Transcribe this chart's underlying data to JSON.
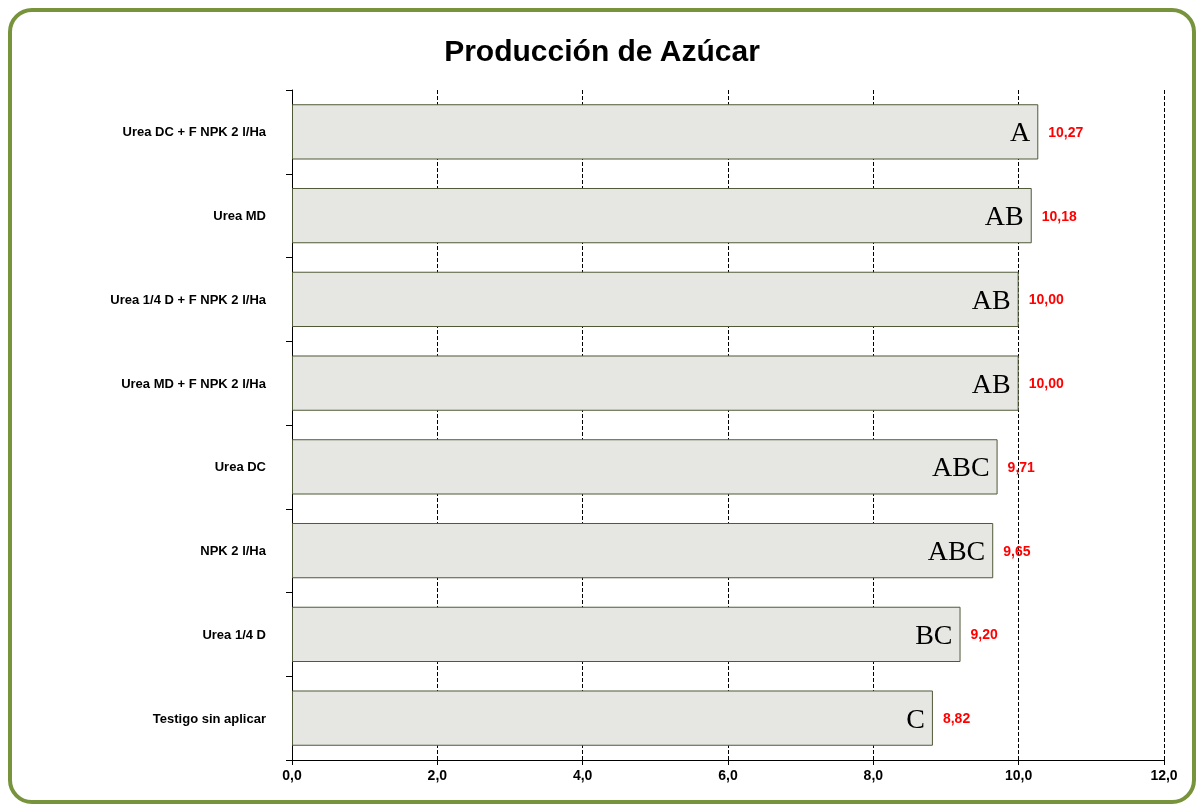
{
  "chart_data": {
    "type": "bar",
    "title": "Producción de Azúcar",
    "orientation": "horizontal",
    "categories": [
      "Urea DC + F NPK 2 l/Ha",
      "Urea MD",
      "Urea 1/4 D + F NPK 2 l/Ha",
      "Urea MD + F NPK 2 l/Ha",
      "Urea DC",
      "NPK 2 l/Ha",
      "Urea 1/4 D",
      "Testigo sin aplicar"
    ],
    "values": [
      10.27,
      10.18,
      10.0,
      10.0,
      9.71,
      9.65,
      9.2,
      8.82
    ],
    "value_labels": [
      "10,27",
      "10,18",
      "10,00",
      "10,00",
      "9,71",
      "9,65",
      "9,20",
      "8,82"
    ],
    "annotations": [
      "A",
      "AB",
      "AB",
      "AB",
      "ABC",
      "ABC",
      "BC",
      "C"
    ],
    "color": "#e6e6e2",
    "xlim": [
      0,
      12
    ],
    "xticks": [
      {
        "value": 0,
        "label": "0,0"
      },
      {
        "value": 2,
        "label": "2,0"
      },
      {
        "value": 4,
        "label": "4,0"
      },
      {
        "value": 6,
        "label": "6,0"
      },
      {
        "value": 8,
        "label": "8,0"
      },
      {
        "value": 10,
        "label": "10,0"
      },
      {
        "value": 12,
        "label": "12,0"
      }
    ],
    "grid": "x"
  }
}
